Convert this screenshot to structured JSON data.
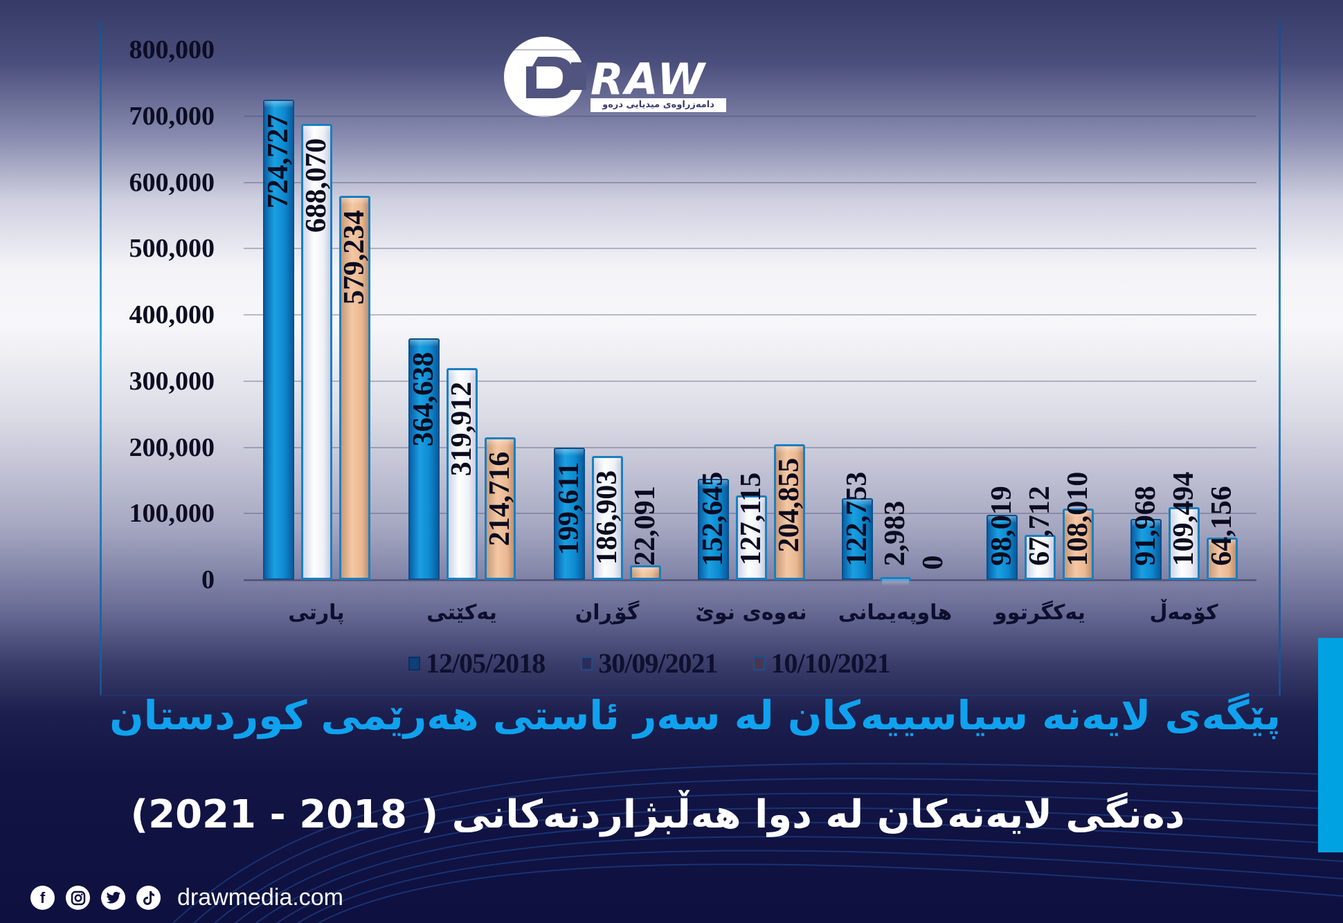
{
  "logo": {
    "brand": "RAW",
    "tagline": "دامەزراوەی میدیایی درەو"
  },
  "chart_data": {
    "type": "bar",
    "title": "پێگەی لایەنە سیاسییەکان لە سەر ئاستی هەرێمی کوردستان",
    "subtitle": "دەنگی لایەنەکان لە دوا هەڵبژاردنەکانی ( 2018 - 2021)",
    "xlabel": "",
    "ylabel": "",
    "ylim": [
      0,
      800000
    ],
    "yticks": [
      "0",
      "100,000",
      "200,000",
      "300,000",
      "400,000",
      "500,000",
      "600,000",
      "700,000",
      "800,000"
    ],
    "grid": true,
    "legend_position": "bottom",
    "categories": [
      "پارتی",
      "یەکێتی",
      "گۆڕان",
      "نەوەی نوێ",
      "هاوپەیمانی",
      "یەکگرتوو",
      "کۆمەڵ"
    ],
    "series": [
      {
        "name": "12/05/2018",
        "color": "#0f8fd6",
        "values": [
          724727,
          364638,
          199611,
          152645,
          122753,
          98019,
          91968
        ],
        "labels": [
          "724,727",
          "364,638",
          "199,611",
          "152,645",
          "122,753",
          "98,019",
          "91,968"
        ]
      },
      {
        "name": "30/09/2021",
        "color": "#ffffff",
        "values": [
          688070,
          319912,
          186903,
          127115,
          2983,
          67712,
          109494
        ],
        "labels": [
          "688,070",
          "319,912",
          "186,903",
          "127,115",
          "2,983",
          "67,712",
          "109,494"
        ]
      },
      {
        "name": "10/10/2021",
        "color": "#f2c29e",
        "values": [
          579234,
          214716,
          22091,
          204855,
          0,
          108010,
          64156
        ],
        "labels": [
          "579,234",
          "214,716",
          "22,091",
          "204,855",
          "0",
          "108,010",
          "64,156"
        ]
      }
    ]
  },
  "footer": {
    "icons": [
      "facebook-icon",
      "instagram-icon",
      "twitter-icon",
      "tiktok-icon"
    ],
    "website": "drawmedia.com"
  },
  "colors": {
    "accent": "#00a2e1",
    "title": "#0fa2ee",
    "background_dark": "#0e1040"
  }
}
